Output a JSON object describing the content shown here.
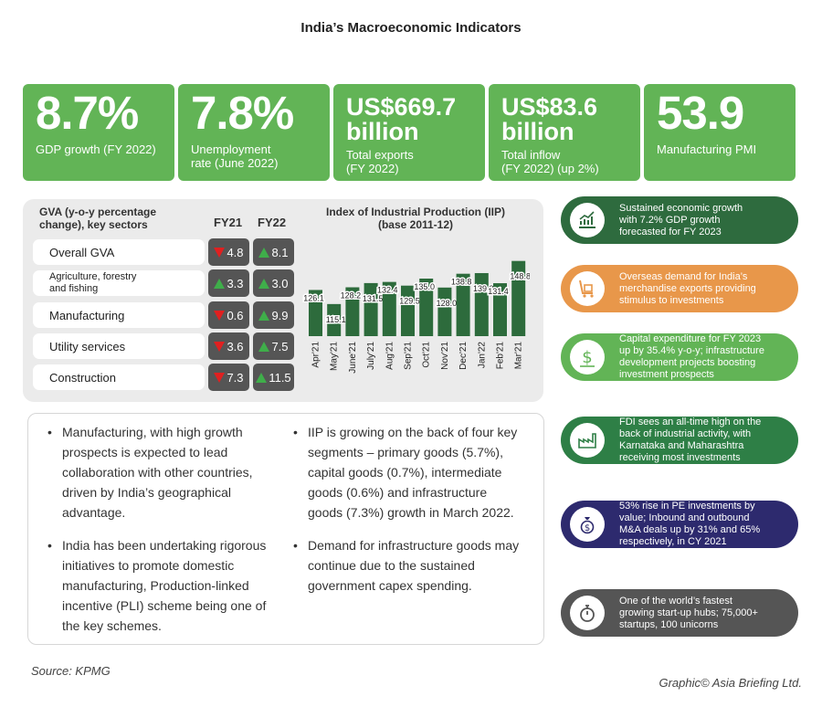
{
  "title": "India’s Macroeconomic Indicators",
  "stats": [
    {
      "value": "8.7%",
      "label": "GDP growth (FY 2022)"
    },
    {
      "value": "7.8%",
      "label": "Unemployment\nrate (June 2022)"
    },
    {
      "value": "US$669.7\nbillion",
      "label": "Total exports\n(FY 2022)"
    },
    {
      "value": "US$83.6\nbillion",
      "label": "Total inflow\n (FY 2022) (up 2%)"
    },
    {
      "value": "53.9",
      "label": "Manufacturing PMI"
    }
  ],
  "gva": {
    "title": "GVA (y-o-y percentage\nchange), key sectors",
    "col1": "FY21",
    "col2": "FY22",
    "rows": [
      {
        "label": "Overall GVA",
        "fy21": "4.8",
        "fy21_dir": "down",
        "fy22": "8.1",
        "fy22_dir": "up"
      },
      {
        "label": "Agriculture, forestry\nand fishing",
        "fy21": "3.3",
        "fy21_dir": "up",
        "fy22": "3.0",
        "fy22_dir": "up"
      },
      {
        "label": "Manufacturing",
        "fy21": "0.6",
        "fy21_dir": "down",
        "fy22": "9.9",
        "fy22_dir": "up"
      },
      {
        "label": "Utility services",
        "fy21": "3.6",
        "fy21_dir": "down",
        "fy22": "7.5",
        "fy22_dir": "up"
      },
      {
        "label": "Construction",
        "fy21": "7.3",
        "fy21_dir": "down",
        "fy22": "11.5",
        "fy22_dir": "up"
      }
    ]
  },
  "chart_data": {
    "type": "bar",
    "title": "Index of Industrial Production (IIP)\n(base 2011-12)",
    "categories": [
      "Apr'21",
      "May'21",
      "June'21",
      "July'21",
      "Aug'21",
      "Sep'21",
      "Oct'21",
      "Nov'21",
      "Dec'21",
      "Jan'22",
      "Feb'21",
      "Mar'21"
    ],
    "values": [
      126.1,
      115.1,
      128.2,
      131.5,
      132.4,
      129.5,
      135.0,
      128.0,
      138.8,
      139.3,
      131.4,
      148.8
    ],
    "color": "#2d6b3c"
  },
  "notes_left": [
    "Manufacturing, with high growth prospects is expected to lead collaboration with other countries, driven by India’s geographical advantage.",
    "India has been undertaking rigorous initiatives to promote domestic manufacturing, Production-linked incentive (PLI) scheme being one of the key schemes."
  ],
  "notes_right": [
    "IIP is growing on the back of four key segments – primary goods (5.7%), capital goods (0.7%), intermediate goods (0.6%) and infrastructure goods (7.3%) growth in March 2022.",
    "Demand for infrastructure goods may continue due to the sustained government capex spending."
  ],
  "highlights": [
    {
      "text": "Sustained economic growth\nwith 7.2% GDP growth\nforecasted for FY 2023",
      "color": "#2e6b3e",
      "icon": "growth-chart-icon"
    },
    {
      "text": "Overseas demand for India’s\nmerchandise exports providing\nstimulus to investments",
      "color": "#e8974a",
      "icon": "cargo-trolley-icon"
    },
    {
      "text": "Capital expenditure for FY 2023\nup by 35.4% y-o-y; infrastructure\ndevelopment projects boosting\ninvestment prospects",
      "color": "#62b456",
      "icon": "dollar-icon"
    },
    {
      "text": "FDI sees an all-time high on the\nback of industrial activity, with\nKarnataka and Maharashtra\nreceiving most investments",
      "color": "#2e7f46",
      "icon": "factory-icon"
    },
    {
      "text": "53% rise in PE investments by\nvalue; Inbound and outbound\nM&A deals up by 31% and 65%\nrespectively, in CY 2021",
      "color": "#2d2a6e",
      "icon": "money-bag-icon"
    },
    {
      "text": "One of the world’s fastest\ngrowing start-up hubs; 75,000+\nstartups, 100 unicorns",
      "color": "#555555",
      "icon": "stopwatch-icon"
    }
  ],
  "source": "Source: KPMG",
  "credit": "Graphic© Asia Briefing Ltd."
}
